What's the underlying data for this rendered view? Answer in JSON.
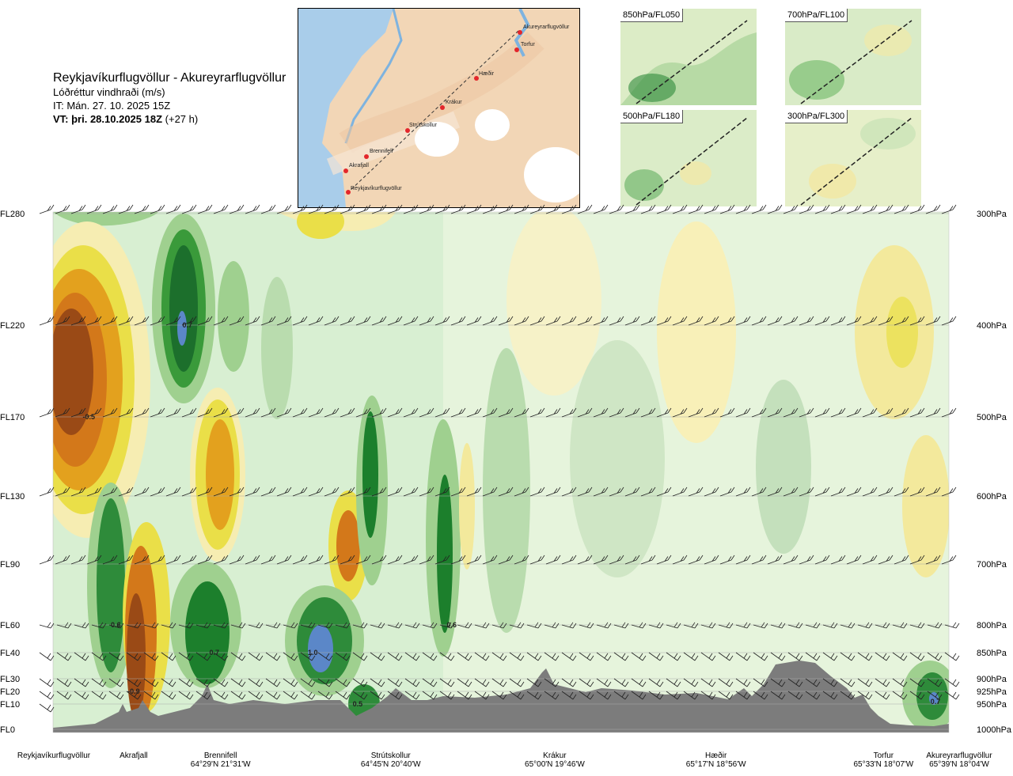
{
  "header": {
    "route": "Reykjavíkurflugvöllur - Akureyrarflugvöllur",
    "variable": "Lóðréttur vindhraði (m/s)",
    "issue_time": "IT: Mán. 27. 10. 2025 15Z",
    "valid_label": "VT: þri. 28.10.2025 18Z",
    "valid_offset": "(+27 h)"
  },
  "route_map": {
    "waypoints": [
      "Akureyrarflugvöllur",
      "Torfur",
      "Hæðir",
      "Krákur",
      "Strútskollur",
      "Brennifell",
      "Akrafjall",
      "Reykjavíkurflugvöllur"
    ]
  },
  "level_maps": [
    "850hPa/FL050",
    "700hPa/FL100",
    "500hPa/FL180",
    "300hPa/FL300"
  ],
  "chart_data": {
    "type": "heatmap",
    "title": "Lóðréttur vindhraði (m/s)",
    "flight_levels": [
      "FL280",
      "FL220",
      "FL170",
      "FL130",
      "FL90",
      "FL60",
      "FL40",
      "FL30",
      "FL20",
      "FL10",
      "FL0"
    ],
    "pressure_levels": [
      "300hPa",
      "400hPa",
      "500hPa",
      "600hPa",
      "700hPa",
      "800hPa",
      "850hPa",
      "900hPa",
      "925hPa",
      "950hPa",
      "1000hPa"
    ],
    "value_labels": [
      {
        "label": "0.7",
        "station_pos": 0.15,
        "hpa": 400
      },
      {
        "label": "-0.5",
        "station_pos": 0.04,
        "hpa": 500
      },
      {
        "label": "0.6",
        "station_pos": 0.07,
        "hpa": 800
      },
      {
        "label": "0.7",
        "station_pos": 0.18,
        "hpa": 850
      },
      {
        "label": "1.0",
        "station_pos": 0.29,
        "hpa": 850
      },
      {
        "label": "0.6",
        "station_pos": 0.445,
        "hpa": 800
      },
      {
        "label": "-0.9",
        "station_pos": 0.09,
        "hpa": 925
      },
      {
        "label": "0.5",
        "station_pos": 0.34,
        "hpa": 950
      },
      {
        "label": "0.7",
        "station_pos": 0.985,
        "hpa": 945
      }
    ],
    "stations": [
      {
        "name": "Reykjavíkurflugvöllur",
        "coord": "",
        "pos": 0.0
      },
      {
        "name": "Akrafjall",
        "coord": "",
        "pos": 0.09
      },
      {
        "name": "Brennifell",
        "coord": "64°29'N 21°31'W",
        "pos": 0.187
      },
      {
        "name": "Strútskollur",
        "coord": "64°45'N 20°40'W",
        "pos": 0.377
      },
      {
        "name": "Krákur",
        "coord": "65°00'N 19°46'W",
        "pos": 0.56
      },
      {
        "name": "Hæðir",
        "coord": "65°17'N 18°56'W",
        "pos": 0.74
      },
      {
        "name": "Torfur",
        "coord": "65°33'N 18°07'W",
        "pos": 0.927
      },
      {
        "name": "Akureyrarflugvöllur",
        "coord": "65°39'N 18°04'W",
        "pos": 1.0
      }
    ]
  }
}
